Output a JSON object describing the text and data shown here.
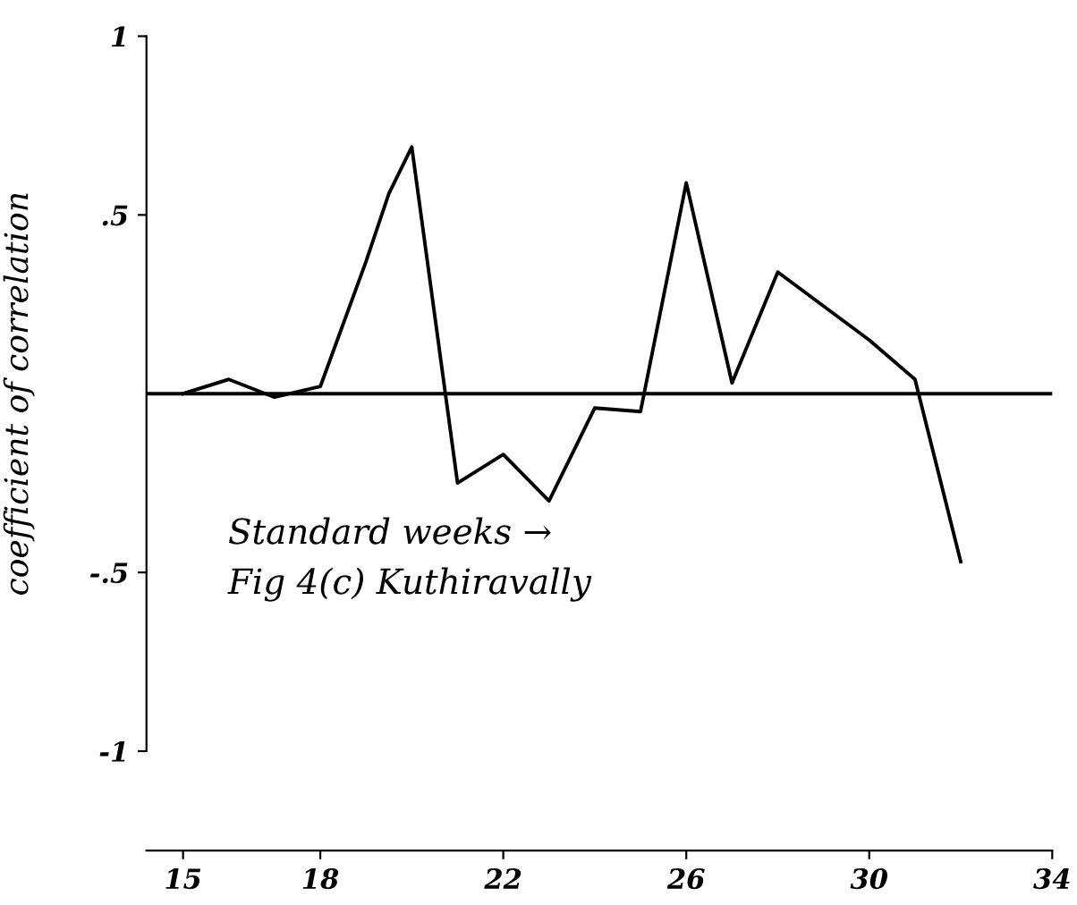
{
  "chart_data": {
    "type": "line",
    "ylabel": "coefficient of correlation",
    "annotations": [
      "Standard weeks →",
      "Fig 4(c) Kuthiravally"
    ],
    "x": [
      15,
      16,
      17,
      18,
      19,
      19.5,
      20,
      21,
      22,
      23,
      24,
      25,
      26,
      27,
      28,
      30,
      31,
      32
    ],
    "values": [
      0.0,
      0.04,
      -0.01,
      0.02,
      0.37,
      0.56,
      0.69,
      -0.25,
      -0.17,
      -0.3,
      -0.04,
      -0.05,
      0.59,
      0.03,
      0.34,
      0.15,
      0.04,
      -0.47
    ],
    "color": "#000000",
    "xlim": [
      14.2,
      34
    ],
    "xticks": [
      15,
      18,
      22,
      26,
      30,
      34
    ],
    "ylim": [
      -1,
      1
    ],
    "yticks": [
      {
        "value": 1,
        "label": "1"
      },
      {
        "value": 0.5,
        "label": ".5"
      },
      {
        "value": -0.5,
        "label": "-.5"
      },
      {
        "value": -1,
        "label": "-1"
      }
    ],
    "ref_lines": [
      {
        "axis": "y",
        "value": 0,
        "color": "#000000"
      }
    ],
    "grid": false,
    "marker": "none",
    "line_style": "solid"
  }
}
